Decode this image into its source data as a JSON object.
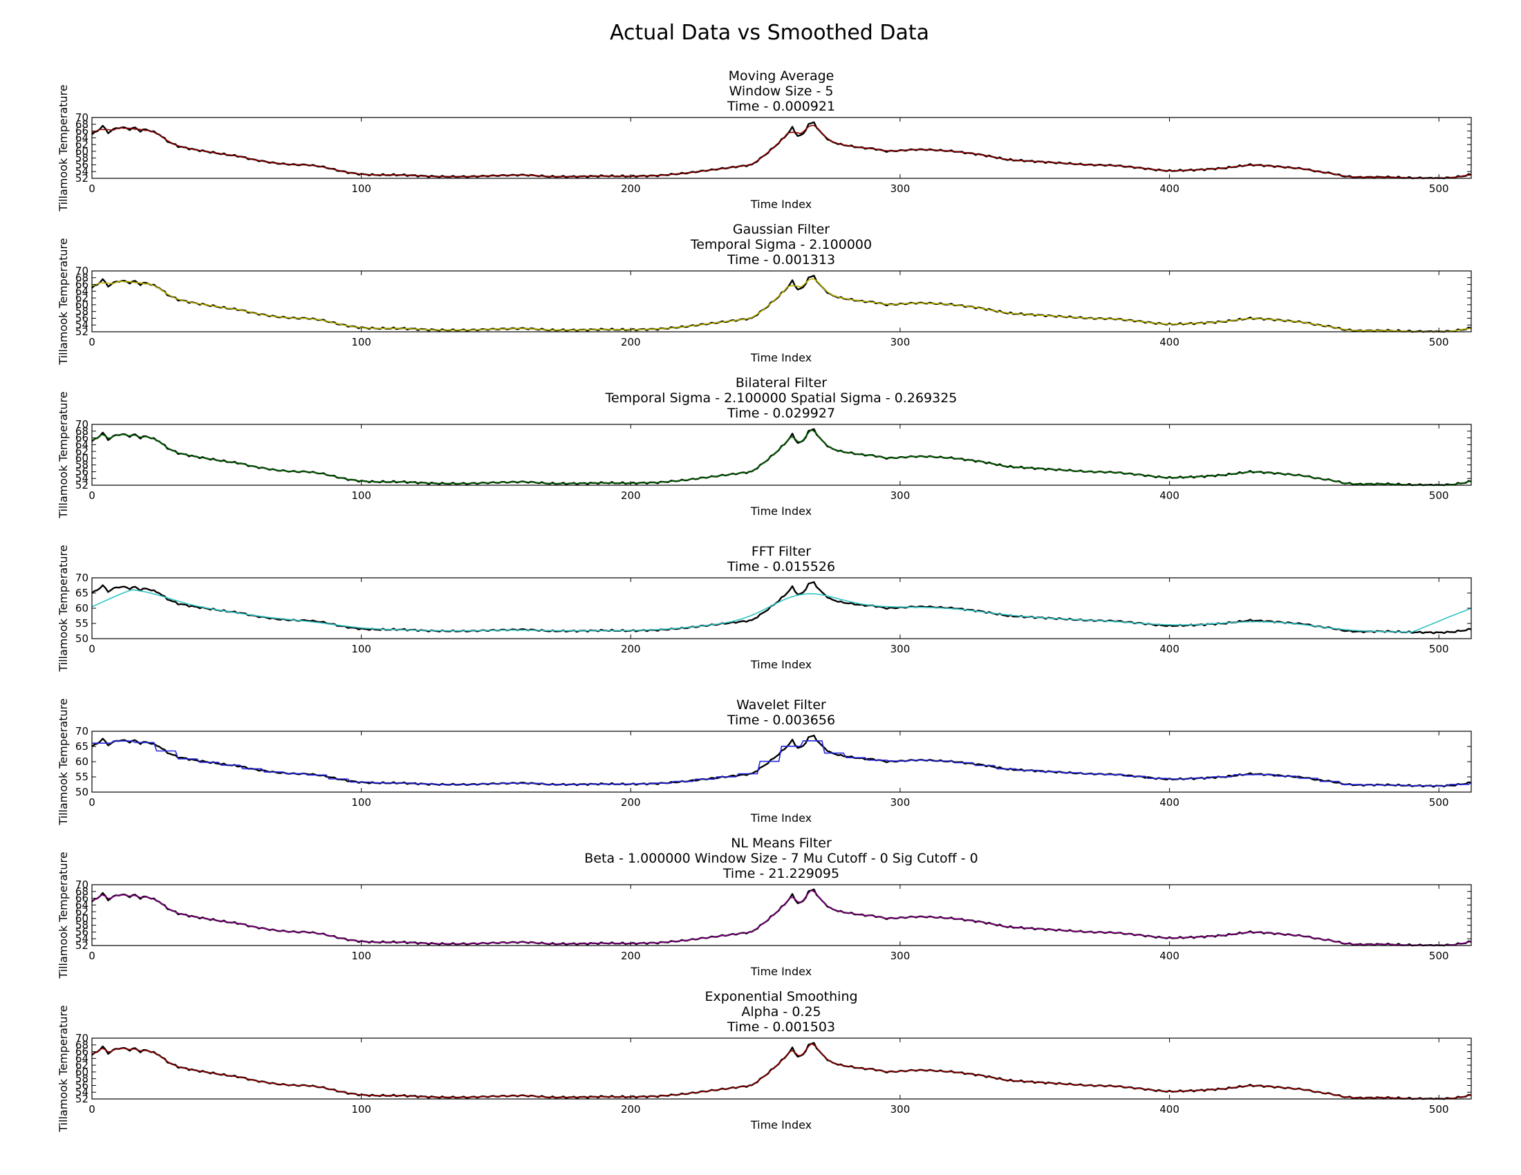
{
  "figure": {
    "title": "Actual Data vs Smoothed Data",
    "actual_color": "#000000"
  },
  "chart_data": [
    {
      "type": "line",
      "title_lines": [
        "Moving Average",
        "Window Size - 5",
        "Time - 0.000921"
      ],
      "xlabel": "Time Index",
      "ylabel": "Tillamook Temperature",
      "xlim": [
        0,
        512
      ],
      "ylim": [
        52,
        70
      ],
      "xticks": [
        0,
        100,
        200,
        300,
        400,
        500
      ],
      "yticks": [
        52,
        54,
        56,
        58,
        60,
        62,
        64,
        66,
        68,
        70
      ],
      "grid": false,
      "series": [
        {
          "color": "#8b0000",
          "values": "smoothed actual"
        }
      ]
    },
    {
      "type": "line",
      "title_lines": [
        "Gaussian Filter",
        "Temporal Sigma - 2.100000",
        "Time - 0.001313"
      ],
      "xlabel": "Time Index",
      "ylabel": "Tillamook Temperature",
      "xlim": [
        0,
        512
      ],
      "ylim": [
        52,
        70
      ],
      "xticks": [
        0,
        100,
        200,
        300,
        400,
        500
      ],
      "yticks": [
        52,
        54,
        56,
        58,
        60,
        62,
        64,
        66,
        68,
        70
      ],
      "grid": false,
      "series": [
        {
          "color": "#b8b400",
          "values": "smoothed actual"
        }
      ]
    },
    {
      "type": "line",
      "title_lines": [
        "Bilateral Filter",
        "Temporal Sigma - 2.100000  Spatial Sigma - 0.269325",
        "Time - 0.029927"
      ],
      "xlabel": "Time Index",
      "ylabel": "Tillamook Temperature",
      "xlim": [
        0,
        512
      ],
      "ylim": [
        52,
        70
      ],
      "xticks": [
        0,
        100,
        200,
        300,
        400,
        500
      ],
      "yticks": [
        52,
        54,
        56,
        58,
        60,
        62,
        64,
        66,
        68,
        70
      ],
      "grid": false,
      "series": [
        {
          "color": "#006400",
          "values": "smoothed actual"
        }
      ]
    },
    {
      "type": "line",
      "title_lines": [
        "FFT Filter",
        "Time - 0.015526"
      ],
      "xlabel": "Time Index",
      "ylabel": "Tillamook Temperature",
      "xlim": [
        0,
        512
      ],
      "ylim": [
        50,
        70
      ],
      "xticks": [
        0,
        100,
        200,
        300,
        400,
        500
      ],
      "yticks": [
        50,
        55,
        60,
        65,
        70
      ],
      "grid": false,
      "series": [
        {
          "color": "#2ec4c4",
          "values": "low-pass of actual"
        }
      ]
    },
    {
      "type": "line",
      "title_lines": [
        "Wavelet Filter",
        "Time - 0.003656"
      ],
      "xlabel": "Time Index",
      "ylabel": "Tillamook Temperature",
      "xlim": [
        0,
        512
      ],
      "ylim": [
        50,
        70
      ],
      "xticks": [
        0,
        100,
        200,
        300,
        400,
        500
      ],
      "yticks": [
        50,
        55,
        60,
        65,
        70
      ],
      "grid": false,
      "series": [
        {
          "color": "#2323e0",
          "values": "stepwise approximation of actual"
        }
      ]
    },
    {
      "type": "line",
      "title_lines": [
        "NL Means Filter",
        "Beta - 1.000000  Window Size - 7  Mu Cutoff - 0  Sig Cutoff - 0",
        "Time - 21.229095"
      ],
      "xlabel": "Time Index",
      "ylabel": "Tillamook Temperature",
      "xlim": [
        0,
        512
      ],
      "ylim": [
        52,
        70
      ],
      "xticks": [
        0,
        100,
        200,
        300,
        400,
        500
      ],
      "yticks": [
        52,
        54,
        56,
        58,
        60,
        62,
        64,
        66,
        68,
        70
      ],
      "grid": false,
      "series": [
        {
          "color": "#800080",
          "values": "smoothed actual"
        }
      ]
    },
    {
      "type": "line",
      "title_lines": [
        "Exponential Smoothing",
        "Alpha - 0.25",
        "Time - 0.001503"
      ],
      "xlabel": "Time Index",
      "ylabel": "Tillamook Temperature",
      "xlim": [
        0,
        512
      ],
      "ylim": [
        52,
        70
      ],
      "xticks": [
        0,
        100,
        200,
        300,
        400,
        500
      ],
      "yticks": [
        52,
        54,
        56,
        58,
        60,
        62,
        64,
        66,
        68,
        70
      ],
      "grid": false,
      "series": [
        {
          "color": "#8b0000",
          "values": "smoothed actual"
        }
      ]
    }
  ],
  "actual_series": {
    "x": [
      0,
      2,
      4,
      6,
      8,
      10,
      12,
      14,
      16,
      18,
      20,
      22,
      25,
      28,
      32,
      35,
      38,
      42,
      46,
      50,
      55,
      60,
      64,
      68,
      72,
      76,
      80,
      85,
      88,
      92,
      96,
      100,
      105,
      110,
      115,
      120,
      125,
      130,
      140,
      150,
      160,
      165,
      170,
      180,
      190,
      200,
      210,
      220,
      230,
      240,
      245,
      250,
      255,
      258,
      260,
      262,
      264,
      266,
      268,
      270,
      274,
      278,
      282,
      286,
      290,
      295,
      300,
      305,
      310,
      320,
      330,
      340,
      350,
      360,
      370,
      380,
      390,
      395,
      400,
      410,
      420,
      425,
      430,
      435,
      440,
      450,
      455,
      460,
      465,
      470,
      480,
      490,
      500,
      505,
      510,
      512
    ],
    "y": [
      65,
      66,
      67.5,
      65.5,
      66.5,
      67,
      67,
      66.5,
      67,
      66,
      66.5,
      66,
      65,
      63,
      61.5,
      61,
      60.5,
      60,
      59.5,
      59,
      58.5,
      57.5,
      57,
      56.5,
      56.2,
      56,
      56,
      55.5,
      55,
      54.2,
      53.6,
      53.2,
      53,
      53,
      53,
      52.8,
      52.6,
      52.5,
      52.5,
      52.8,
      53,
      52.8,
      52.5,
      52.5,
      52.7,
      52.6,
      52.8,
      53.5,
      54.5,
      55.5,
      56,
      59,
      62.5,
      65,
      67,
      64.5,
      65,
      68,
      68.5,
      66,
      63,
      62,
      61.5,
      61,
      60.8,
      60,
      60.2,
      60.5,
      60.5,
      60,
      59,
      57.5,
      57,
      56.5,
      56,
      55.8,
      55,
      54.5,
      54.2,
      54.5,
      55,
      55.5,
      56,
      55.8,
      55.5,
      54.8,
      54,
      53.5,
      52.6,
      52.3,
      52.4,
      52.1,
      52,
      52.2,
      52.8,
      53.2
    ]
  }
}
